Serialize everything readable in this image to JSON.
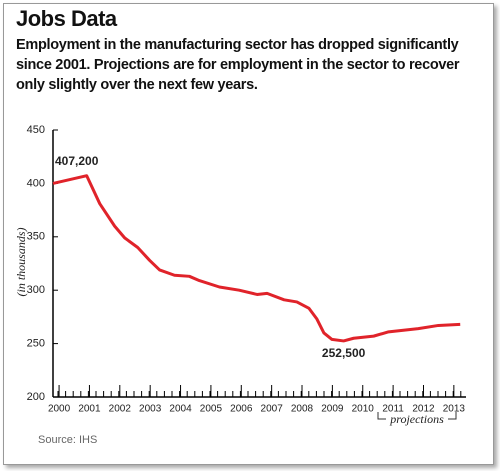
{
  "chart_data": {
    "type": "line",
    "title": "Jobs Data",
    "subtitle": "Employment in the manufacturing sector has dropped significantly since 2001. Projections are for employment in the sector to recover only slightly over the next few years.",
    "y_label": "(in thousands)",
    "source": "Source: IHS",
    "annotation": "projections",
    "color": "#e0232a",
    "x": [
      1999.8,
      2000.91,
      2001.34,
      2001.83,
      2002.16,
      2002.59,
      2002.98,
      2003.31,
      2003.8,
      2004.29,
      2004.62,
      2005.28,
      2005.93,
      2006.52,
      2006.85,
      2007.41,
      2007.83,
      2008.23,
      2008.49,
      2008.72,
      2008.98,
      2009.37,
      2009.7,
      2010.36,
      2010.85,
      2011.83,
      2012.49,
      2013.21
    ],
    "values": [
      400,
      407.2,
      381,
      360,
      349,
      340,
      328,
      319,
      314,
      313,
      309,
      303,
      300,
      296,
      297,
      291,
      289,
      283,
      273,
      260,
      254,
      252.5,
      255,
      257,
      261,
      264,
      267,
      268
    ],
    "value_labels": [
      null,
      "407,200",
      null,
      null,
      null,
      null,
      null,
      null,
      null,
      null,
      null,
      null,
      null,
      null,
      null,
      null,
      null,
      null,
      null,
      null,
      null,
      "252,500",
      null,
      null,
      null,
      null,
      null,
      null
    ],
    "xlim": [
      1999.8,
      2013.4
    ],
    "xticks": [
      2000,
      2001,
      2002,
      2003,
      2004,
      2005,
      2006,
      2007,
      2008,
      2009,
      2010,
      2011,
      2012,
      2013
    ],
    "ylim": [
      200,
      450
    ],
    "yticks": [
      200,
      250,
      300,
      350,
      400,
      450
    ],
    "grid": false
  }
}
